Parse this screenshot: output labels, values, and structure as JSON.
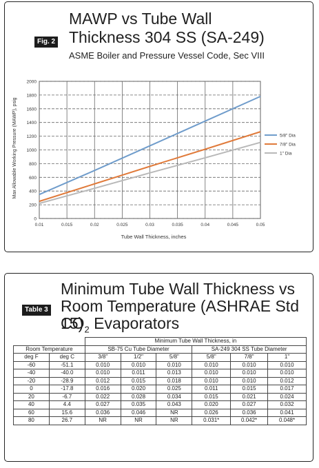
{
  "figure": {
    "tag": "Fig. 2",
    "title_line1": "MAWP vs Tube Wall",
    "title_line2": "Thickness 304 SS (SA-249)",
    "subtitle": "ASME Boiler and Pressure Vessel Code, Sec VIII",
    "colors": {
      "five_eighths": "#6f9ccb",
      "seven_eighths": "#e07a3a",
      "one_inch": "#b8b8b8"
    }
  },
  "chart_data": {
    "type": "line",
    "xlabel": "Tube Wall Thickness, inches",
    "ylabel": "Max Allowable Working Pressure (MAWP), psig",
    "xlim": [
      0.01,
      0.05
    ],
    "ylim": [
      0,
      2000
    ],
    "x_ticks": [
      "0.01",
      "0.015",
      "0.02",
      "0.025",
      "0.03",
      "0.035",
      "0.04",
      "0.045",
      "0.05"
    ],
    "y_ticks": [
      "0",
      "200",
      "400",
      "600",
      "800",
      "1000",
      "1200",
      "1400",
      "1600",
      "1800",
      "2000"
    ],
    "grid": true,
    "legend_position": "right",
    "x": [
      0.01,
      0.02,
      0.03,
      0.04,
      0.05
    ],
    "series": [
      {
        "name": "5/8\" Dia",
        "values": [
          350,
          700,
          1060,
          1420,
          1780
        ]
      },
      {
        "name": "7/8\" Dia",
        "values": [
          250,
          505,
          760,
          1010,
          1265
        ]
      },
      {
        "name": "1\" Dia",
        "values": [
          220,
          440,
          665,
          885,
          1110
        ]
      }
    ]
  },
  "table": {
    "tag": "Table 3",
    "title_line1": "Minimum Tube Wall Thickness vs",
    "title_line2": "Room Temperature (ASHRAE Std 15)",
    "title_line3_pre": "CO",
    "title_line3_sub": "2",
    "title_line3_post": " Evaporators",
    "super_header": "Minimum Tube Wall Thickness, in",
    "group_room": "Room Temperature",
    "group_cu": "SB-75 Cu Tube Diameter",
    "group_ss": "SA-249 304 SS Tube Diameter",
    "columns": [
      "deg F",
      "deg C",
      "3/8\"",
      "1/2\"",
      "5/8\"",
      "5/8\"",
      "7/8\"",
      "1\""
    ],
    "rows": [
      [
        "-60",
        "-51.1",
        "0.010",
        "0.010",
        "0.010",
        "0.010",
        "0.010",
        "0.010"
      ],
      [
        "-40",
        "-40.0",
        "0.010",
        "0.011",
        "0.013",
        "0.010",
        "0.010",
        "0.010"
      ],
      [
        "-20",
        "-28.9",
        "0.012",
        "0.015",
        "0.018",
        "0.010",
        "0.010",
        "0.012"
      ],
      [
        "0",
        "-17.8",
        "0.016",
        "0.020",
        "0.025",
        "0.011",
        "0.015",
        "0.017"
      ],
      [
        "20",
        "-6.7",
        "0.022",
        "0.028",
        "0.034",
        "0.015",
        "0.021",
        "0.024"
      ],
      [
        "40",
        "4.4",
        "0.027",
        "0.035",
        "0.043",
        "0.020",
        "0.027",
        "0.032"
      ],
      [
        "60",
        "15.6",
        "0.036",
        "0.046",
        "NR",
        "0.026",
        "0.036",
        "0.041"
      ],
      [
        "80",
        "26.7",
        "NR",
        "NR",
        "NR",
        "0.031*",
        "0.042*",
        "0.048*"
      ]
    ]
  }
}
